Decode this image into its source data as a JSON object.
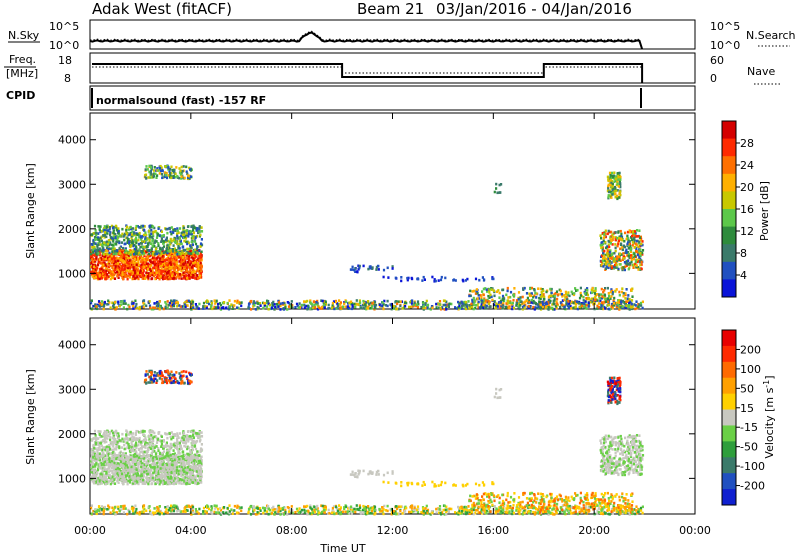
{
  "header": {
    "station": "Adak West (fitACF)",
    "beam": "Beam 21",
    "date_range": "03/Jan/2016 - 04/Jan/2016"
  },
  "top_panels": {
    "nsky_label": "N.Sky",
    "nsearch_label": "N.Search",
    "noise_ticks_left": [
      "10^5",
      "10^0"
    ],
    "noise_ticks_right": [
      "10^5",
      "10^0"
    ],
    "freq_label_line1": "Freq.",
    "freq_label_line2": "[MHz]",
    "freq_ticks": [
      "18",
      "8"
    ],
    "nave_label": "Nave",
    "nave_ticks": [
      "60",
      "0"
    ],
    "cpid_label": "CPID",
    "cpid_text": "normalsound (fast) -157 RF"
  },
  "colors": {
    "power": [
      "#0a14d8",
      "#2050c0",
      "#3a7a6a",
      "#2e8b3c",
      "#5cc84a",
      "#c8c800",
      "#ffb000",
      "#ff7000",
      "#ff2a00",
      "#d40000"
    ],
    "velocity": [
      "#1020d0",
      "#2050c0",
      "#3a7a6a",
      "#2e9e3c",
      "#6ad046",
      "#c8c8c0",
      "#ffd000",
      "#ffa000",
      "#ff6a00",
      "#ff2a00",
      "#e80000"
    ]
  },
  "chart_data": [
    {
      "type": "heatmap",
      "name": "power",
      "ylabel": "Slant Range [km]",
      "yticks": [
        "4000",
        "3000",
        "2000",
        "1000"
      ],
      "ylim": [
        200,
        4600
      ],
      "xlim": [
        "00:00",
        "24:00"
      ],
      "colorbar_label": "Power [dB]",
      "colorbar_ticks": [
        "28",
        "24",
        "20",
        "16",
        "12",
        "8",
        "4"
      ],
      "clim": [
        0,
        32
      ]
    },
    {
      "type": "heatmap",
      "name": "velocity",
      "ylabel": "Slant Range [km]",
      "yticks": [
        "4000",
        "3000",
        "2000",
        "1000"
      ],
      "ylim": [
        200,
        4600
      ],
      "xlim": [
        "00:00",
        "24:00"
      ],
      "xlabel": "Time UT",
      "xticks": [
        "00:00",
        "04:00",
        "08:00",
        "12:00",
        "16:00",
        "20:00",
        "00:00"
      ],
      "colorbar_label": "Velocity [m s^-1]",
      "colorbar_ticks": [
        "200",
        "100",
        "50",
        "15",
        "-15",
        "-50",
        "-100",
        "-200"
      ]
    }
  ]
}
